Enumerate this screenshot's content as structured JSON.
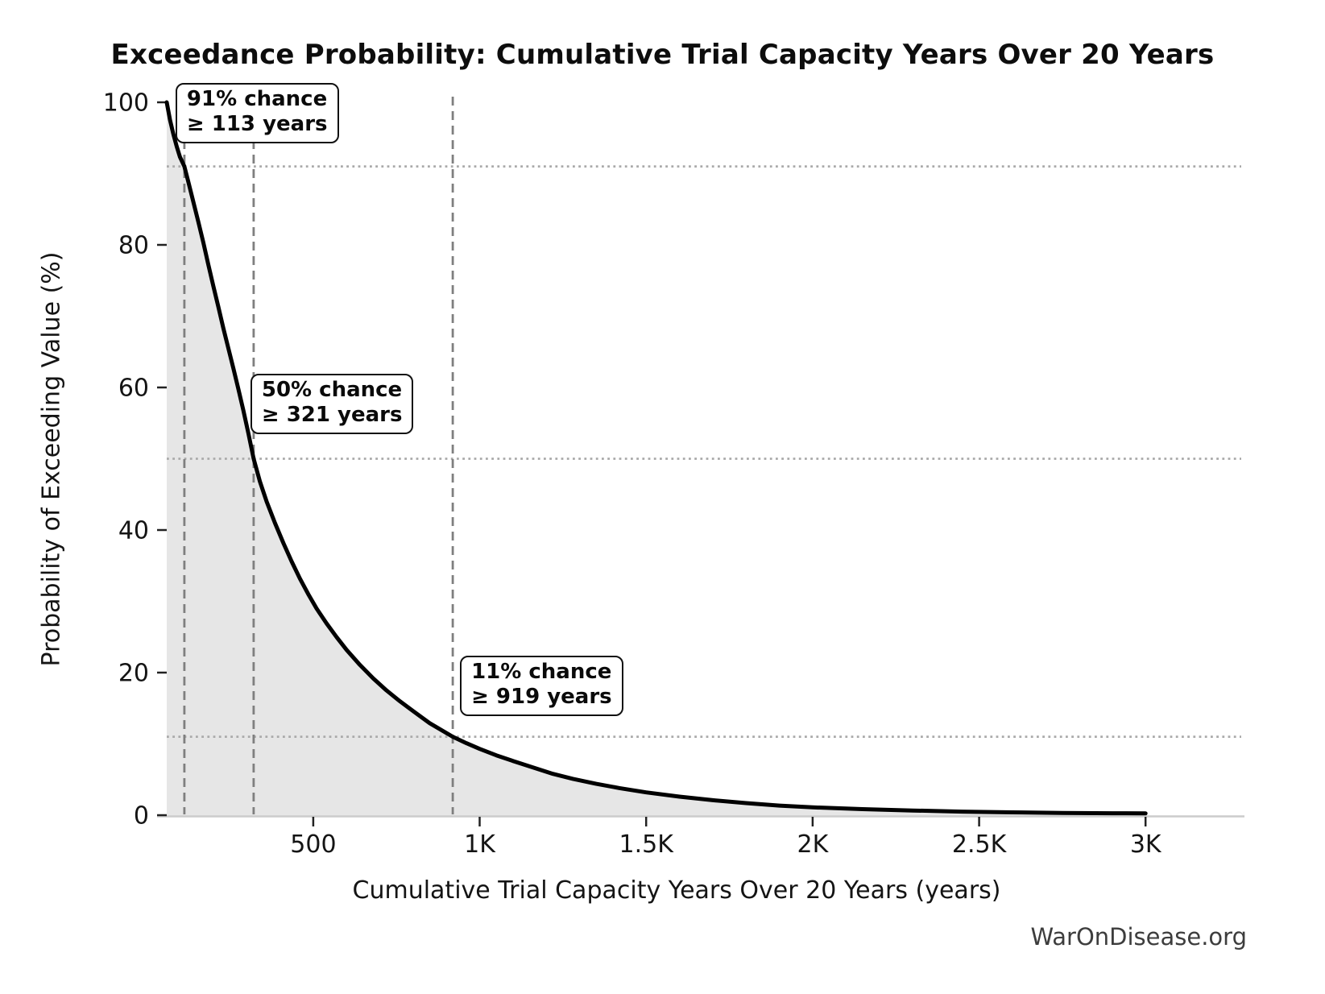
{
  "title": "Exceedance Probability: Cumulative Trial Capacity Years Over 20 Years",
  "watermark": "WarOnDisease.org",
  "chart_data": {
    "type": "area",
    "title": "Exceedance Probability: Cumulative Trial Capacity Years Over 20 Years",
    "xlabel": "Cumulative Trial Capacity Years Over 20 Years (years)",
    "ylabel": "Probability of Exceeding Value (%)",
    "xlim": [
      60,
      3297
    ],
    "ylim": [
      0,
      100
    ],
    "grid": "guide lines only (dashed vertical at annotated years, dotted horizontal at annotated probabilities)",
    "legend_position": "none",
    "x_ticks": [
      {
        "value": 500,
        "label": "500"
      },
      {
        "value": 1000,
        "label": "1K"
      },
      {
        "value": 1500,
        "label": "1.5K"
      },
      {
        "value": 2000,
        "label": "2K"
      },
      {
        "value": 2500,
        "label": "2.5K"
      },
      {
        "value": 3000,
        "label": "3K"
      }
    ],
    "y_ticks": [
      {
        "value": 0,
        "label": "0"
      },
      {
        "value": 20,
        "label": "20"
      },
      {
        "value": 40,
        "label": "40"
      },
      {
        "value": 60,
        "label": "60"
      },
      {
        "value": 80,
        "label": "80"
      },
      {
        "value": 100,
        "label": "100"
      }
    ],
    "series": [
      {
        "name": "Exceedance probability curve",
        "x_years": [
          60,
          70,
          80,
          90,
          100,
          113,
          125,
          140,
          155,
          170,
          185,
          200,
          215,
          230,
          245,
          260,
          275,
          290,
          305,
          321,
          340,
          360,
          385,
          410,
          435,
          460,
          485,
          510,
          540,
          570,
          600,
          640,
          680,
          720,
          760,
          800,
          850,
          919,
          960,
          1000,
          1050,
          1100,
          1160,
          1220,
          1280,
          1350,
          1420,
          1500,
          1600,
          1700,
          1800,
          1900,
          2000,
          2150,
          2300,
          2450,
          2600,
          2750,
          2900,
          3000
        ],
        "p_percent": [
          100,
          97.5,
          95.5,
          93.8,
          92.3,
          91,
          88.8,
          86,
          83.2,
          80.3,
          77.2,
          74.2,
          71.3,
          68.3,
          65.5,
          62.7,
          59.8,
          56.8,
          53.6,
          50,
          46.8,
          44,
          41,
          38.2,
          35.6,
          33.2,
          31,
          29,
          26.9,
          25,
          23.2,
          21.1,
          19.2,
          17.5,
          16,
          14.6,
          12.9,
          11,
          10.1,
          9.3,
          8.4,
          7.6,
          6.7,
          5.8,
          5.1,
          4.4,
          3.8,
          3.2,
          2.6,
          2.1,
          1.7,
          1.35,
          1.1,
          0.85,
          0.65,
          0.5,
          0.4,
          0.32,
          0.27,
          0.25
        ]
      }
    ],
    "annotations": [
      {
        "pct": 91,
        "years": 113,
        "line1": "91% chance",
        "line2": "≥ 113 years"
      },
      {
        "pct": 50,
        "years": 321,
        "line1": "50% chance",
        "line2": "≥ 321 years"
      },
      {
        "pct": 11,
        "years": 919,
        "line1": "11% chance",
        "line2": "≥ 919 years"
      }
    ],
    "colors": {
      "curve": "#000000",
      "area_fill": "#e6e6e6",
      "dashed_guide": "#7f7f7f",
      "dotted_guide": "#aaaaaa",
      "bottom_spine": "#cccccc",
      "tick": "#222222",
      "text": "#141414",
      "watermark_text": "#3d3d3d"
    }
  }
}
